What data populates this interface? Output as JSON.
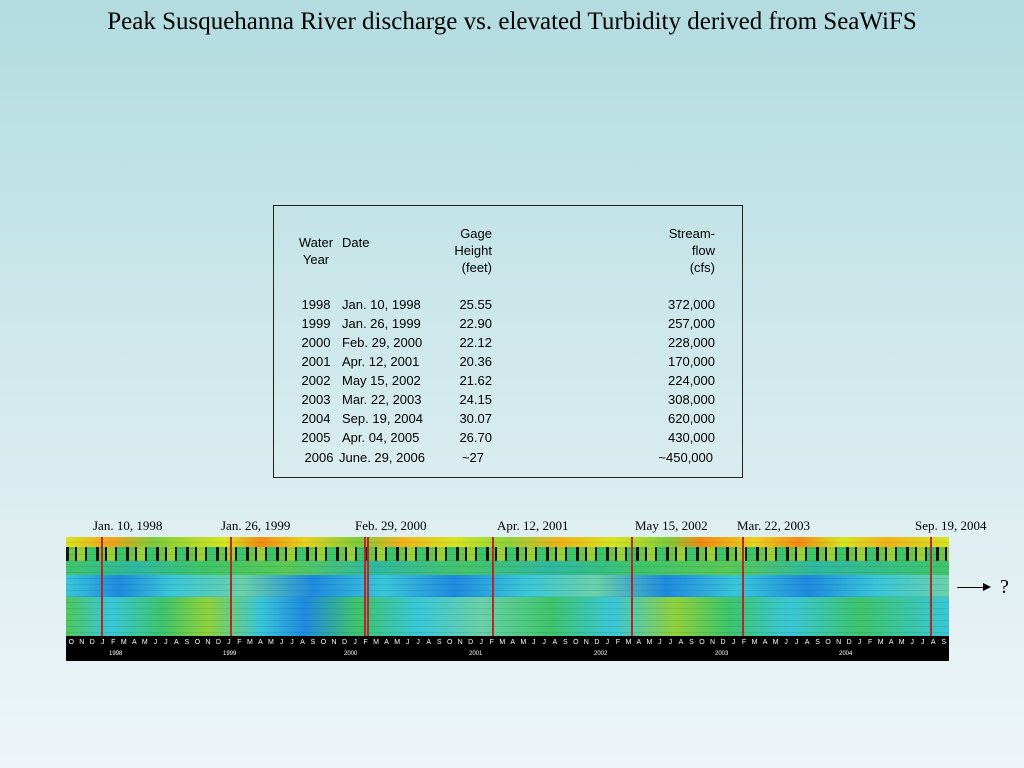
{
  "title": "Peak Susquehanna River discharge vs. elevated Turbidity derived from SeaWiFS",
  "table": {
    "headers": {
      "water_year": [
        "Water",
        "Year"
      ],
      "date": "Date",
      "gage_height": [
        "Gage",
        "Height",
        "(feet)"
      ],
      "streamflow": [
        "Stream-",
        "flow",
        "(cfs)"
      ]
    },
    "rows": [
      {
        "year": "1998",
        "date": "Jan. 10, 1998",
        "gage": "25.55",
        "flow": "372,000"
      },
      {
        "year": "1999",
        "date": "Jan. 26, 1999",
        "gage": "22.90",
        "flow": "257,000"
      },
      {
        "year": "2000",
        "date": "Feb. 29, 2000",
        "gage": "22.12",
        "flow": "228,000"
      },
      {
        "year": "2001",
        "date": "Apr. 12, 2001",
        "gage": "20.36",
        "flow": "170,000"
      },
      {
        "year": "2002",
        "date": "May 15, 2002",
        "gage": "21.62",
        "flow": "224,000"
      },
      {
        "year": "2003",
        "date": "Mar. 22, 2003",
        "gage": "24.15",
        "flow": "308,000"
      },
      {
        "year": "2004",
        "date": "Sep. 19, 2004",
        "gage": "30.07",
        "flow": "620,000"
      },
      {
        "year": "2005",
        "date": "Apr. 04, 2005",
        "gage": "26.70",
        "flow": "430,000"
      },
      {
        "year": "2006",
        "date": "June. 29, 2006",
        "gage": "~27",
        "flow": "~450,000"
      }
    ]
  },
  "timeline": {
    "events": [
      "Jan. 10, 1998",
      "Jan. 26, 1999",
      "Feb. 29, 2000",
      "Apr. 12, 2001",
      "May 15, 2002",
      "Mar. 22, 2003",
      "Sep. 19, 2004"
    ],
    "months": [
      "O",
      "N",
      "D",
      "J",
      "F",
      "M",
      "A",
      "M",
      "J",
      "J",
      "A",
      "S",
      "O",
      "N",
      "D",
      "J",
      "F",
      "M",
      "A",
      "M",
      "J",
      "J",
      "A",
      "S",
      "O",
      "N",
      "D",
      "J",
      "F",
      "M",
      "A",
      "M",
      "J",
      "J",
      "A",
      "S",
      "O",
      "N",
      "D",
      "J",
      "F",
      "M",
      "A",
      "M",
      "J",
      "J",
      "A",
      "S",
      "O",
      "N",
      "D",
      "J",
      "F",
      "M",
      "A",
      "M",
      "J",
      "J",
      "A",
      "S",
      "O",
      "N",
      "D",
      "J",
      "F",
      "M",
      "A",
      "M",
      "J",
      "J",
      "A",
      "S",
      "O",
      "N",
      "D",
      "J",
      "F",
      "M",
      "A",
      "M",
      "J",
      "J",
      "A",
      "S"
    ],
    "years": [
      "1998",
      "1999",
      "2000",
      "2001",
      "2002",
      "2003",
      "2004"
    ],
    "colors": {
      "high": "#f28a10",
      "mid_high": "#d7e421",
      "mid": "#3ec46a",
      "low": "#39c6d8",
      "lowest": "#1f8ae0",
      "event_line": "#b4282a"
    }
  },
  "arrow_label": "?"
}
